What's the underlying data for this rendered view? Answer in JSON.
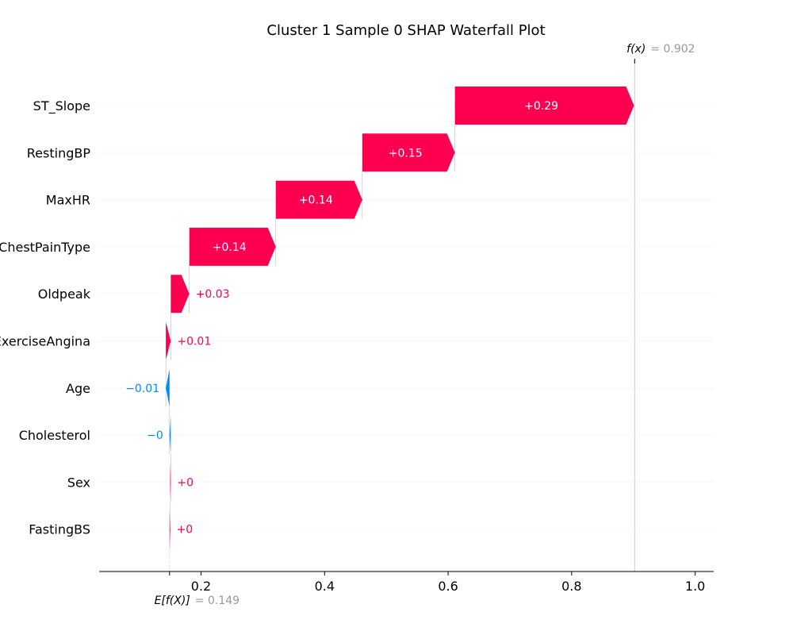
{
  "chart_data": {
    "type": "waterfall",
    "title": "Cluster 1 Sample 0 SHAP Waterfall Plot",
    "base_value": 0.149,
    "base_label": "E[f(X)]",
    "base_value_text": "= 0.149",
    "output_value": 0.902,
    "output_label": "f(x)",
    "output_value_text": "= 0.902",
    "xlim": [
      0.035,
      1.03
    ],
    "x_ticks": [
      0.2,
      0.4,
      0.6,
      0.8,
      1.0
    ],
    "x_tick_labels": [
      "0.2",
      "0.4",
      "0.6",
      "0.8",
      "1.0"
    ],
    "grid": "dotted-horizontal",
    "colors": {
      "positive": "#ff0051",
      "negative": "#008bfb",
      "axis": "#000000",
      "annotation": "#999999"
    },
    "features": [
      {
        "name": "ST_Slope",
        "value": 0.29,
        "label": "+0.29"
      },
      {
        "name": "RestingBP",
        "value": 0.15,
        "label": "+0.15"
      },
      {
        "name": "MaxHR",
        "value": 0.14,
        "label": "+0.14"
      },
      {
        "name": "ChestPainType",
        "value": 0.14,
        "label": "+0.14"
      },
      {
        "name": "Oldpeak",
        "value": 0.03,
        "label": "+0.03"
      },
      {
        "name": "ExerciseAngina",
        "value": 0.008,
        "label": "+0.01"
      },
      {
        "name": "Age",
        "value": -0.006,
        "label": "−0.01"
      },
      {
        "name": "Cholesterol",
        "value": -0.002,
        "label": "−0"
      },
      {
        "name": "Sex",
        "value": 0.001,
        "label": "+0"
      },
      {
        "name": "FastingBS",
        "value": 0.001,
        "label": "+0"
      }
    ]
  }
}
